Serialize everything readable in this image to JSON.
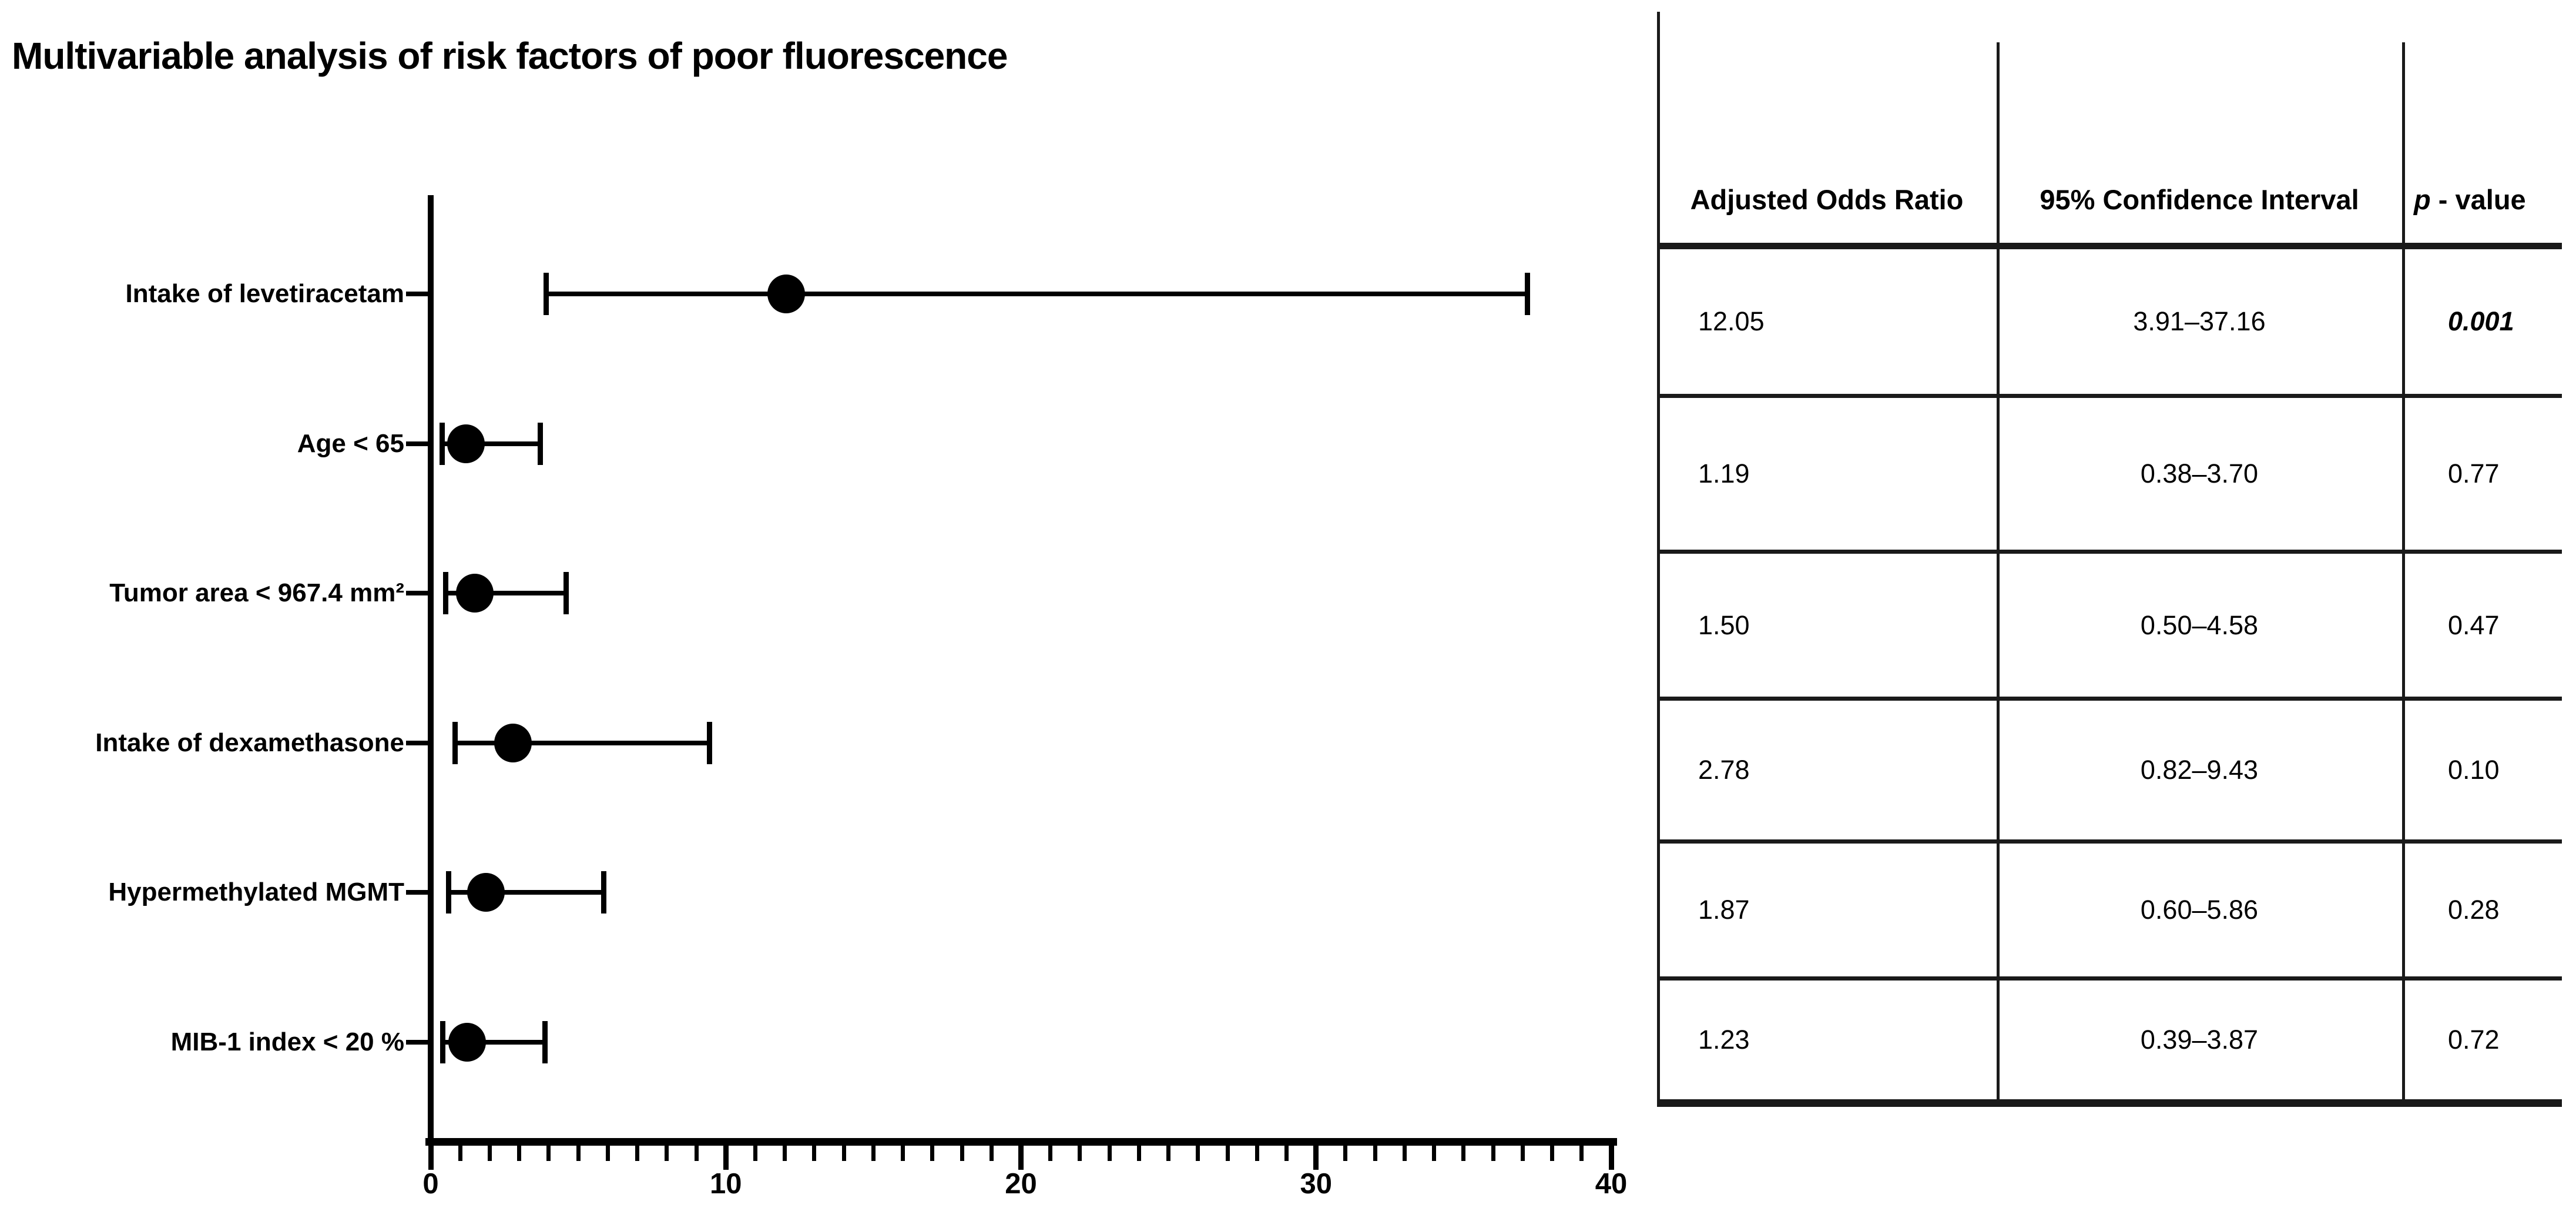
{
  "title": "Multivariable analysis of risk factors of poor fluorescence",
  "colors": {
    "foreground": "#000000",
    "background": "#ffffff"
  },
  "chart_data": {
    "type": "scatter",
    "subtype": "forest-plot-with-error-bars",
    "title": "Multivariable analysis of risk factors of poor fluorescence",
    "xlabel": "",
    "ylabel": "",
    "xlim": [
      0,
      40
    ],
    "grid": false,
    "x_axis": {
      "min": 0,
      "max": 40,
      "major_tick_step": 10,
      "minor_tick_step": 1,
      "major_tick_labels": [
        "0",
        "10",
        "20",
        "30",
        "40"
      ]
    },
    "rows": [
      {
        "label": "Intake of levetiracetam",
        "odds_ratio": 12.05,
        "ci_low": 3.91,
        "ci_high": 37.16,
        "p_value": "0.001"
      },
      {
        "label": "Age < 65",
        "odds_ratio": 1.19,
        "ci_low": 0.38,
        "ci_high": 3.7,
        "p_value": "0.77"
      },
      {
        "label": "Tumor area < 967.4 mm²",
        "odds_ratio": 1.5,
        "ci_low": 0.5,
        "ci_high": 4.58,
        "p_value": "0.47"
      },
      {
        "label": "Intake of dexamethasone",
        "odds_ratio": 2.78,
        "ci_low": 0.82,
        "ci_high": 9.43,
        "p_value": "0.10"
      },
      {
        "label": "Hypermethylated MGMT",
        "odds_ratio": 1.87,
        "ci_low": 0.6,
        "ci_high": 5.86,
        "p_value": "0.28"
      },
      {
        "label": "MIB-1 index < 20 %",
        "odds_ratio": 1.23,
        "ci_low": 0.39,
        "ci_high": 3.87,
        "p_value": "0.72"
      }
    ]
  },
  "table": {
    "headers": {
      "aor": "Adjusted Odds Ratio",
      "ci": "95% Confidence Interval",
      "p_italic": "p",
      "p_rest": " - value"
    },
    "rows": [
      {
        "aor": "12.05",
        "ci": "3.91–37.16",
        "p": "0.001"
      },
      {
        "aor": "1.19",
        "ci": "0.38–3.70",
        "p": "0.77"
      },
      {
        "aor": "1.50",
        "ci": "0.50–4.58",
        "p": "0.47"
      },
      {
        "aor": "2.78",
        "ci": "0.82–9.43",
        "p": "0.10"
      },
      {
        "aor": "1.87",
        "ci": "0.60–5.86",
        "p": "0.28"
      },
      {
        "aor": "1.23",
        "ci": "0.39–3.87",
        "p": "0.72"
      }
    ]
  }
}
